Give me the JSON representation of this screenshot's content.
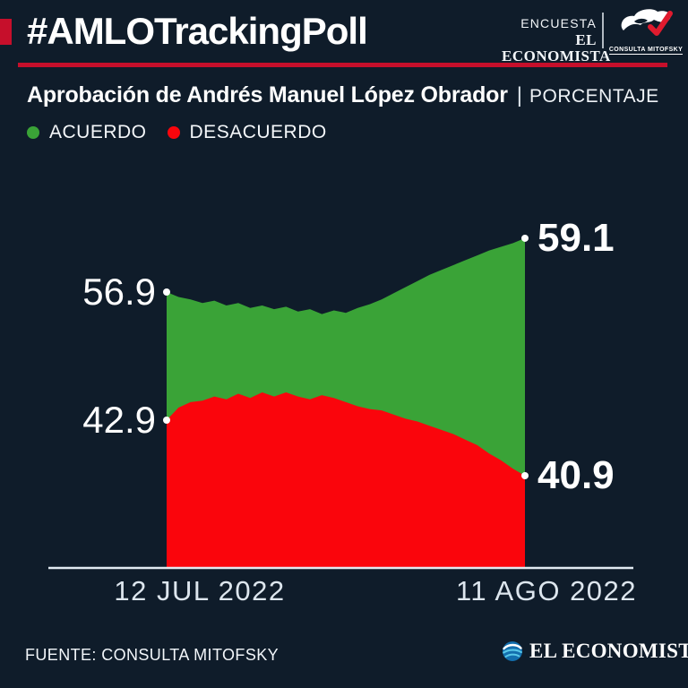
{
  "page": {
    "background": "#0f1c2a",
    "accent_red": "#c60f2b",
    "text_color": "#ffffff"
  },
  "header": {
    "hashtag": "#AMLOTrackingPoll",
    "encuesta_label": "ENCUESTA",
    "economista_label": "EL ECONOMISTA",
    "mitofsky_label": "CONSULTA MITOFSKY"
  },
  "title": {
    "main": "Aprobación de Andrés Manuel López Obrador",
    "separator": "|",
    "unit": "PORCENTAJE"
  },
  "legend": [
    {
      "label": "ACUERDO",
      "color": "#3aa337"
    },
    {
      "label": "DESACUERDO",
      "color": "#fa050c"
    }
  ],
  "chart_data": {
    "type": "area",
    "title": "Aprobación de Andrés Manuel López Obrador",
    "ylabel": "PORCENTAJE",
    "grid": false,
    "legend_position": "top-left",
    "x_axis": {
      "start_label": "12 JUL 2022",
      "end_label": "11 AGO 2022",
      "n_points": 31
    },
    "series": [
      {
        "name": "ACUERDO",
        "color": "#3aa337",
        "start_label": "56.9",
        "end_label": "59.1",
        "values": [
          56.9,
          56.7,
          56.6,
          56.45,
          56.55,
          56.35,
          56.45,
          56.25,
          56.35,
          56.2,
          56.3,
          56.1,
          56.2,
          56.0,
          56.15,
          56.05,
          56.25,
          56.4,
          56.6,
          56.85,
          57.1,
          57.35,
          57.6,
          57.8,
          58.0,
          58.2,
          58.4,
          58.6,
          58.75,
          58.9,
          59.1
        ]
      },
      {
        "name": "DESACUERDO",
        "color": "#fa050c",
        "start_label": "42.9",
        "end_label": "40.9",
        "values": [
          42.9,
          43.35,
          43.55,
          43.6,
          43.75,
          43.65,
          43.85,
          43.7,
          43.9,
          43.75,
          43.9,
          43.75,
          43.65,
          43.8,
          43.7,
          43.55,
          43.4,
          43.3,
          43.25,
          43.1,
          42.95,
          42.85,
          42.7,
          42.55,
          42.4,
          42.2,
          42.0,
          41.7,
          41.45,
          41.15,
          40.9
        ]
      }
    ]
  },
  "footer": {
    "source": "FUENTE: CONSULTA MITOFSKY",
    "brand": "EL ECONOMISTA"
  }
}
